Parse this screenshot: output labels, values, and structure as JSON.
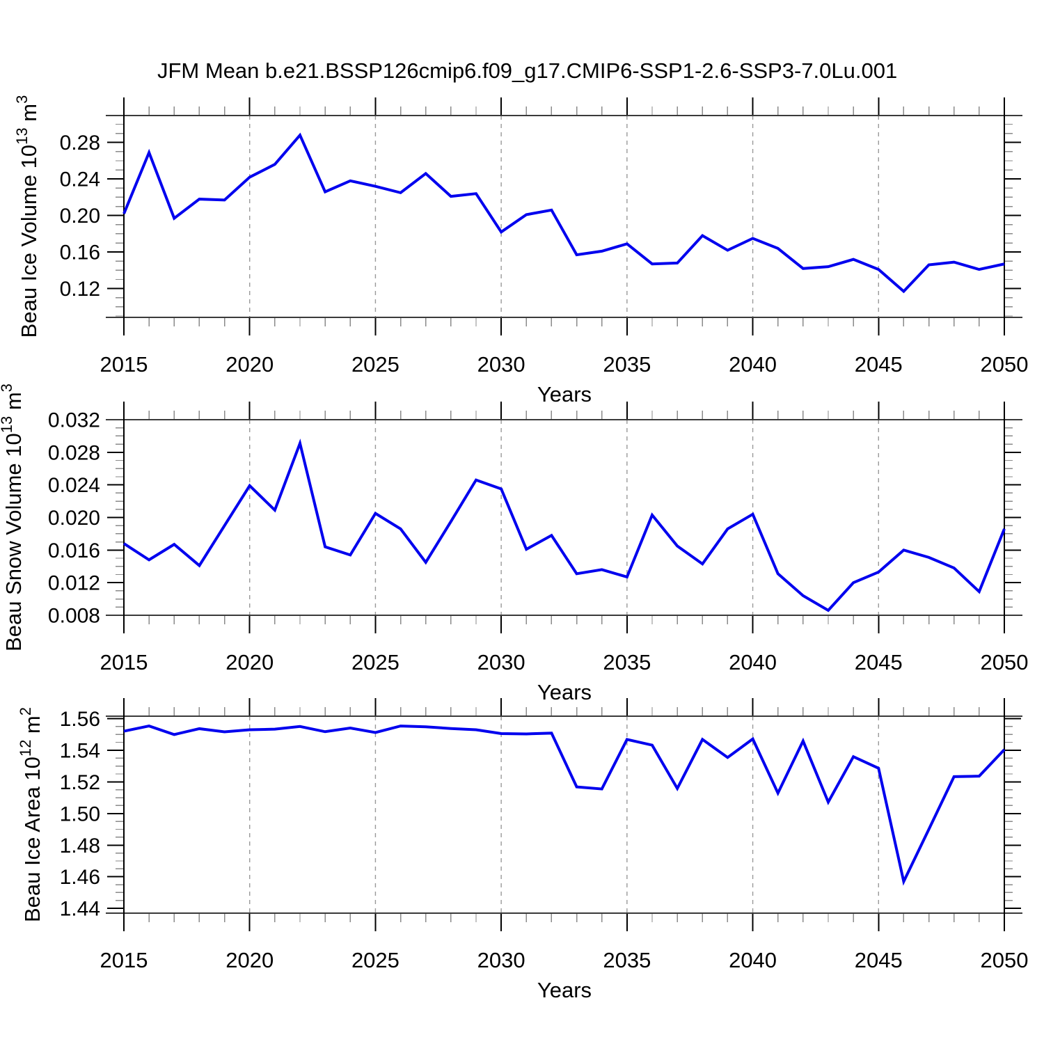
{
  "title": "JFM Mean b.e21.BSSP126cmip6.f09_g17.CMIP6-SSP1-2.6-SSP3-7.0Lu.001",
  "colors": {
    "line": "#0000EE",
    "border": "#3a3a3a",
    "spine": "#000000",
    "tick_major": "#000000",
    "tick_minor": "#8a8a8a",
    "grid": "#999999",
    "text": "#000000",
    "background": "#FFFFFF"
  },
  "chart_data": {
    "type": "line",
    "title": "JFM Mean b.e21.BSSP126cmip6.f09_g17.CMIP6-SSP1-2.6-SSP3-7.0Lu.001",
    "years": [
      2015,
      2016,
      2017,
      2018,
      2019,
      2020,
      2021,
      2022,
      2023,
      2024,
      2025,
      2026,
      2027,
      2028,
      2029,
      2030,
      2031,
      2032,
      2033,
      2034,
      2035,
      2036,
      2037,
      2038,
      2039,
      2040,
      2041,
      2042,
      2043,
      2044,
      2045,
      2046,
      2047,
      2048,
      2049,
      2050
    ],
    "xticks": {
      "values": [
        2015,
        2020,
        2025,
        2030,
        2035,
        2040,
        2045,
        2050
      ],
      "labels": [
        "2015",
        "2020",
        "2025",
        "2030",
        "2035",
        "2040",
        "2045",
        "2050"
      ],
      "minor_step": 1
    },
    "grid_years": [
      2020,
      2025,
      2030,
      2035,
      2040,
      2045
    ],
    "legend": "none",
    "grid": "vertical-dashed-only",
    "panels": [
      {
        "id": "beau-ice-volume",
        "ylabel_text": "Beau Ice Volume 10¹³ m³",
        "ylabel_parts": [
          {
            "t": "Beau Ice Volume 10"
          },
          {
            "t": "13",
            "sup": true
          },
          {
            "t": " m"
          },
          {
            "t": "3",
            "sup": true
          }
        ],
        "xlabel": "Years",
        "ylim": [
          0.0885,
          0.3095
        ],
        "ymajor": [
          0.12,
          0.16,
          0.2,
          0.24,
          0.28
        ],
        "ytick_labels": [
          "0.12",
          "0.16",
          "0.20",
          "0.24",
          "0.28"
        ],
        "yminor_step": 0.01,
        "values": [
          0.202,
          0.269,
          0.197,
          0.218,
          0.217,
          0.242,
          0.256,
          0.288,
          0.226,
          0.238,
          0.232,
          0.225,
          0.246,
          0.221,
          0.224,
          0.182,
          0.201,
          0.206,
          0.157,
          0.161,
          0.169,
          0.147,
          0.148,
          0.178,
          0.162,
          0.175,
          0.164,
          0.142,
          0.144,
          0.152,
          0.141,
          0.117,
          0.146,
          0.149,
          0.141,
          0.147
        ]
      },
      {
        "id": "beau-snow-volume",
        "ylabel_text": "Beau Snow Volume 10¹³ m³",
        "ylabel_parts": [
          {
            "t": "Beau Snow Volume 10"
          },
          {
            "t": "13",
            "sup": true
          },
          {
            "t": " m"
          },
          {
            "t": "3",
            "sup": true
          }
        ],
        "xlabel": "Years",
        "ylim": [
          0.008,
          0.032
        ],
        "ymajor": [
          0.008,
          0.012,
          0.016,
          0.02,
          0.024,
          0.028,
          0.032
        ],
        "ytick_labels": [
          "0.008",
          "0.012",
          "0.016",
          "0.020",
          "0.024",
          "0.028",
          "0.032"
        ],
        "yminor_step": 0.001,
        "values": [
          0.0168,
          0.0148,
          0.0167,
          0.0141,
          0.019,
          0.0239,
          0.0209,
          0.0291,
          0.0164,
          0.0154,
          0.0205,
          0.0186,
          0.0145,
          0.0195,
          0.0246,
          0.0235,
          0.0161,
          0.0178,
          0.0131,
          0.0136,
          0.0127,
          0.0203,
          0.0165,
          0.0143,
          0.0186,
          0.0204,
          0.0131,
          0.0104,
          0.0086,
          0.012,
          0.0133,
          0.016,
          0.0151,
          0.0138,
          0.0109,
          0.0186
        ]
      },
      {
        "id": "beau-ice-area",
        "ylabel_text": "Beau Ice Area 10¹² m²",
        "ylabel_parts": [
          {
            "t": "Beau Ice Area 10"
          },
          {
            "t": "12",
            "sup": true
          },
          {
            "t": " m"
          },
          {
            "t": "2",
            "sup": true
          }
        ],
        "xlabel": "Years",
        "ylim": [
          1.437,
          1.5615
        ],
        "ymajor": [
          1.44,
          1.46,
          1.48,
          1.5,
          1.52,
          1.54,
          1.56
        ],
        "ytick_labels": [
          "1.44",
          "1.46",
          "1.48",
          "1.50",
          "1.52",
          "1.54",
          "1.56"
        ],
        "yminor_step": 0.005,
        "values": [
          1.552,
          1.5553,
          1.5499,
          1.5536,
          1.5516,
          1.5529,
          1.5533,
          1.555,
          1.5517,
          1.554,
          1.5512,
          1.5553,
          1.5548,
          1.5537,
          1.5529,
          1.5505,
          1.5503,
          1.5508,
          1.5168,
          1.5155,
          1.5468,
          1.5432,
          1.5158,
          1.5468,
          1.5354,
          1.5471,
          1.5129,
          1.5458,
          1.5072,
          1.5359,
          1.5286,
          1.457,
          1.49,
          1.5233,
          1.5236,
          1.5404
        ]
      }
    ]
  }
}
